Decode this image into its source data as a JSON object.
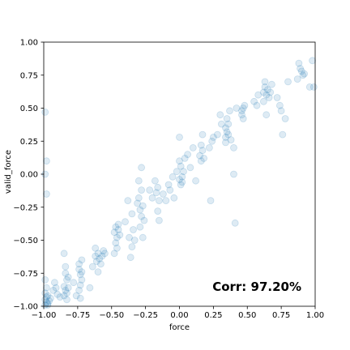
{
  "chart_data": {
    "type": "scatter",
    "xlabel": "force",
    "ylabel": "valid_force",
    "xlim": [
      -1.0,
      1.0
    ],
    "ylim": [
      -1.0,
      1.0
    ],
    "x_ticks": [
      "−1.00",
      "−0.75",
      "−0.50",
      "−0.25",
      "0.00",
      "0.25",
      "0.50",
      "0.75",
      "1.00"
    ],
    "y_ticks": [
      "−1.00",
      "−0.75",
      "−0.50",
      "−0.25",
      "0.00",
      "0.25",
      "0.50",
      "0.75",
      "1.00"
    ],
    "x_tick_values": [
      -1.0,
      -0.75,
      -0.5,
      -0.25,
      0.0,
      0.25,
      0.5,
      0.75,
      1.0
    ],
    "y_tick_values": [
      -1.0,
      -0.75,
      -0.5,
      -0.25,
      0.0,
      0.25,
      0.5,
      0.75,
      1.0
    ],
    "annotation": "Corr: 97.20%",
    "grid": false,
    "marker_color": "#1f77b4",
    "marker_alpha": 0.15,
    "points": [
      [
        -0.99,
        -0.99
      ],
      [
        -0.98,
        -0.97
      ],
      [
        -0.99,
        -0.95
      ],
      [
        -0.97,
        -0.98
      ],
      [
        -0.98,
        -0.93
      ],
      [
        -0.99,
        -0.9
      ],
      [
        -0.96,
        -0.96
      ],
      [
        -0.98,
        -0.86
      ],
      [
        -0.97,
        -0.99
      ],
      [
        -0.95,
        -0.94
      ],
      [
        -0.99,
        -0.8
      ],
      [
        -0.97,
        -0.92
      ],
      [
        -0.99,
        0.47
      ],
      [
        -0.98,
        0.1
      ],
      [
        -0.99,
        0.0
      ],
      [
        -0.98,
        -0.15
      ],
      [
        -0.93,
        -0.88
      ],
      [
        -0.91,
        -0.86
      ],
      [
        -0.9,
        -0.91
      ],
      [
        -0.88,
        -0.93
      ],
      [
        -0.92,
        -0.82
      ],
      [
        -0.85,
        -0.85
      ],
      [
        -0.84,
        -0.88
      ],
      [
        -0.83,
        -0.8
      ],
      [
        -0.85,
        -0.92
      ],
      [
        -0.84,
        -0.75
      ],
      [
        -0.82,
        -0.86
      ],
      [
        -0.83,
        -0.95
      ],
      [
        -0.84,
        -0.7
      ],
      [
        -0.85,
        -0.6
      ],
      [
        -0.82,
        -0.78
      ],
      [
        -0.83,
        -0.9
      ],
      [
        -0.78,
        -0.82
      ],
      [
        -0.76,
        -0.92
      ],
      [
        -0.74,
        -0.72
      ],
      [
        -0.73,
        -0.76
      ],
      [
        -0.72,
        -0.8
      ],
      [
        -0.74,
        -0.68
      ],
      [
        -0.73,
        -0.84
      ],
      [
        -0.72,
        -0.65
      ],
      [
        -0.74,
        -0.88
      ],
      [
        -0.72,
        -0.74
      ],
      [
        -0.73,
        -0.94
      ],
      [
        -0.66,
        -0.86
      ],
      [
        -0.64,
        -0.7
      ],
      [
        -0.62,
        -0.62
      ],
      [
        -0.61,
        -0.66
      ],
      [
        -0.6,
        -0.6
      ],
      [
        -0.59,
        -0.64
      ],
      [
        -0.62,
        -0.56
      ],
      [
        -0.58,
        -0.68
      ],
      [
        -0.6,
        -0.74
      ],
      [
        -0.57,
        -0.62
      ],
      [
        -0.55,
        -0.6
      ],
      [
        -0.56,
        -0.58
      ],
      [
        -0.48,
        -0.44
      ],
      [
        -0.47,
        -0.4
      ],
      [
        -0.46,
        -0.48
      ],
      [
        -0.45,
        -0.42
      ],
      [
        -0.47,
        -0.52
      ],
      [
        -0.46,
        -0.56
      ],
      [
        -0.45,
        -0.38
      ],
      [
        -0.48,
        -0.6
      ],
      [
        -0.44,
        -0.46
      ],
      [
        -0.4,
        -0.36
      ],
      [
        -0.38,
        -0.2
      ],
      [
        -0.37,
        -0.48
      ],
      [
        -0.36,
        -0.63
      ],
      [
        -0.35,
        -0.3
      ],
      [
        -0.34,
        -0.42
      ],
      [
        -0.35,
        -0.55
      ],
      [
        -0.33,
        -0.5
      ],
      [
        -0.31,
        -0.22
      ],
      [
        -0.3,
        -0.18
      ],
      [
        -0.29,
        -0.27
      ],
      [
        -0.28,
        -0.32
      ],
      [
        -0.27,
        -0.24
      ],
      [
        -0.29,
        -0.4
      ],
      [
        -0.28,
        -0.12
      ],
      [
        -0.27,
        -0.48
      ],
      [
        -0.3,
        -0.05
      ],
      [
        -0.28,
        0.05
      ],
      [
        -0.26,
        -0.35
      ],
      [
        -0.22,
        -0.12
      ],
      [
        -0.2,
        -0.18
      ],
      [
        -0.18,
        -0.05
      ],
      [
        -0.17,
        -0.14
      ],
      [
        -0.16,
        -0.1
      ],
      [
        -0.15,
        -0.2
      ],
      [
        -0.16,
        -0.28
      ],
      [
        -0.15,
        -0.35
      ],
      [
        -0.12,
        -0.15
      ],
      [
        -0.1,
        -0.2
      ],
      [
        -0.08,
        -0.08
      ],
      [
        -0.07,
        -0.12
      ],
      [
        -0.05,
        -0.02
      ],
      [
        -0.04,
        -0.18
      ],
      [
        -0.02,
        0.02
      ],
      [
        0.0,
        -0.04
      ],
      [
        0.01,
        0.06
      ],
      [
        0.02,
        -0.02
      ],
      [
        0.0,
        0.1
      ],
      [
        0.01,
        -0.08
      ],
      [
        0.03,
        0.02
      ],
      [
        0.02,
        -0.06
      ],
      [
        0.04,
        0.12
      ],
      [
        0.0,
        0.28
      ],
      [
        0.06,
        0.15
      ],
      [
        0.08,
        0.05
      ],
      [
        0.1,
        0.2
      ],
      [
        0.12,
        -0.05
      ],
      [
        0.15,
        0.14
      ],
      [
        0.16,
        0.1
      ],
      [
        0.17,
        0.18
      ],
      [
        0.18,
        0.12
      ],
      [
        0.16,
        0.22
      ],
      [
        0.17,
        0.3
      ],
      [
        0.22,
        0.2
      ],
      [
        0.24,
        0.25
      ],
      [
        0.23,
        -0.2
      ],
      [
        0.25,
        0.28
      ],
      [
        0.28,
        0.3
      ],
      [
        0.3,
        0.45
      ],
      [
        0.31,
        0.38
      ],
      [
        0.34,
        0.35
      ],
      [
        0.35,
        0.32
      ],
      [
        0.36,
        0.38
      ],
      [
        0.34,
        0.28
      ],
      [
        0.35,
        0.42
      ],
      [
        0.36,
        0.3
      ],
      [
        0.34,
        0.24
      ],
      [
        0.37,
        0.48
      ],
      [
        0.38,
        0.26
      ],
      [
        0.4,
        0.2
      ],
      [
        0.4,
        0.0
      ],
      [
        0.41,
        -0.37
      ],
      [
        0.42,
        0.5
      ],
      [
        0.46,
        0.48
      ],
      [
        0.47,
        0.5
      ],
      [
        0.46,
        0.45
      ],
      [
        0.48,
        0.52
      ],
      [
        0.47,
        0.42
      ],
      [
        0.55,
        0.55
      ],
      [
        0.57,
        0.52
      ],
      [
        0.58,
        0.6
      ],
      [
        0.62,
        0.62
      ],
      [
        0.63,
        0.66
      ],
      [
        0.64,
        0.6
      ],
      [
        0.65,
        0.64
      ],
      [
        0.63,
        0.7
      ],
      [
        0.66,
        0.58
      ],
      [
        0.62,
        0.55
      ],
      [
        0.64,
        0.45
      ],
      [
        0.68,
        0.68
      ],
      [
        0.67,
        0.62
      ],
      [
        0.72,
        0.58
      ],
      [
        0.74,
        0.52
      ],
      [
        0.75,
        0.48
      ],
      [
        0.78,
        0.42
      ],
      [
        0.76,
        0.3
      ],
      [
        0.8,
        0.7
      ],
      [
        0.88,
        0.84
      ],
      [
        0.9,
        0.78
      ],
      [
        0.91,
        0.75
      ],
      [
        0.89,
        0.8
      ],
      [
        0.92,
        0.76
      ],
      [
        0.87,
        0.72
      ],
      [
        0.96,
        0.66
      ],
      [
        0.98,
        0.86
      ],
      [
        0.99,
        0.66
      ]
    ]
  }
}
